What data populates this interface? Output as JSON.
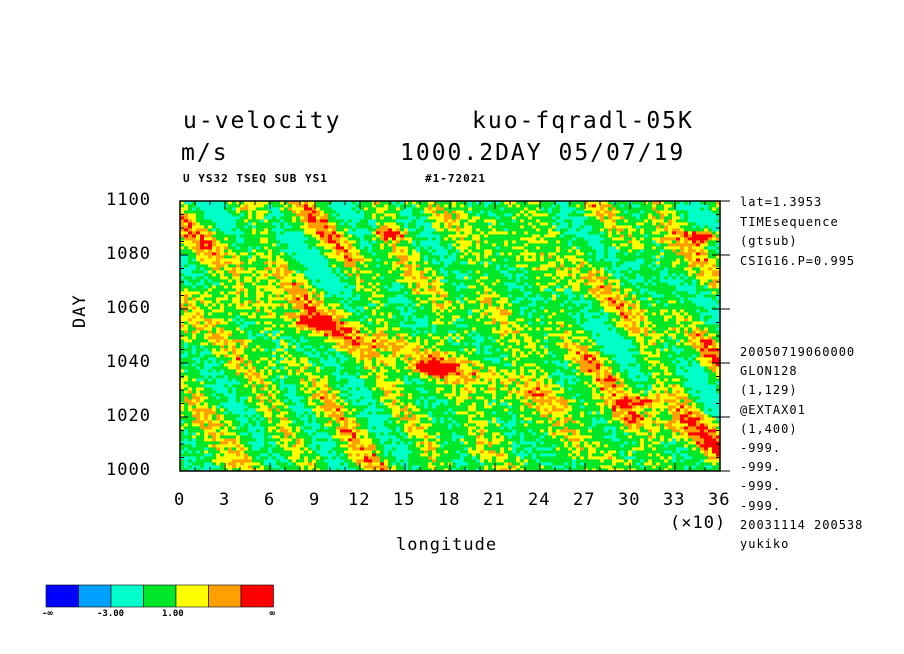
{
  "header": {
    "variable": "u-velocity",
    "experiment": "kuo-fqradl-05K",
    "units": "m/s",
    "time_date": "1000.2DAY 05/07/19",
    "subtitle": "U YS32 TSEQ SUB YS1",
    "subtitle_id": "#1-72021"
  },
  "side_info": {
    "top": [
      "lat=1.3953",
      "TIMEsequence",
      "(gtsub)",
      "CSIG16.P=0.995"
    ],
    "bottom": [
      "20050719060000",
      "GLON128",
      "(1,129)",
      "@EXTAX01",
      "(1,400)",
      "-999.",
      "-999.",
      "-999.",
      "-999.",
      "20031114 200538",
      "yukiko"
    ]
  },
  "colorbar": {
    "colors": [
      "#0000ff",
      "#00a0ff",
      "#00ffc8",
      "#00e628",
      "#ffff00",
      "#ffa000",
      "#ff0000"
    ],
    "labels": [
      "-∞",
      "-3.00",
      "1.00",
      "∞"
    ]
  },
  "chart_data": {
    "type": "heatmap",
    "xlabel": "longitude",
    "ylabel": "DAY",
    "x_multiplier": "(×10)",
    "xlim": [
      0,
      36
    ],
    "ylim": [
      1000,
      1100
    ],
    "x_ticks": [
      "0",
      "3",
      "6",
      "9",
      "12",
      "15",
      "18",
      "21",
      "24",
      "27",
      "30",
      "33",
      "36"
    ],
    "y_ticks": [
      "1000",
      "1020",
      "1040",
      "1060",
      "1080",
      "1100"
    ],
    "features": [
      {
        "x": 17,
        "y": 1038,
        "level": 6
      },
      {
        "x": 14,
        "y": 1088,
        "level": 5
      },
      {
        "x": 35,
        "y": 1087,
        "level": 6
      },
      {
        "x": 9,
        "y": 1055,
        "level": 5
      },
      {
        "x": 31,
        "y": 1026,
        "level": 5
      }
    ]
  }
}
